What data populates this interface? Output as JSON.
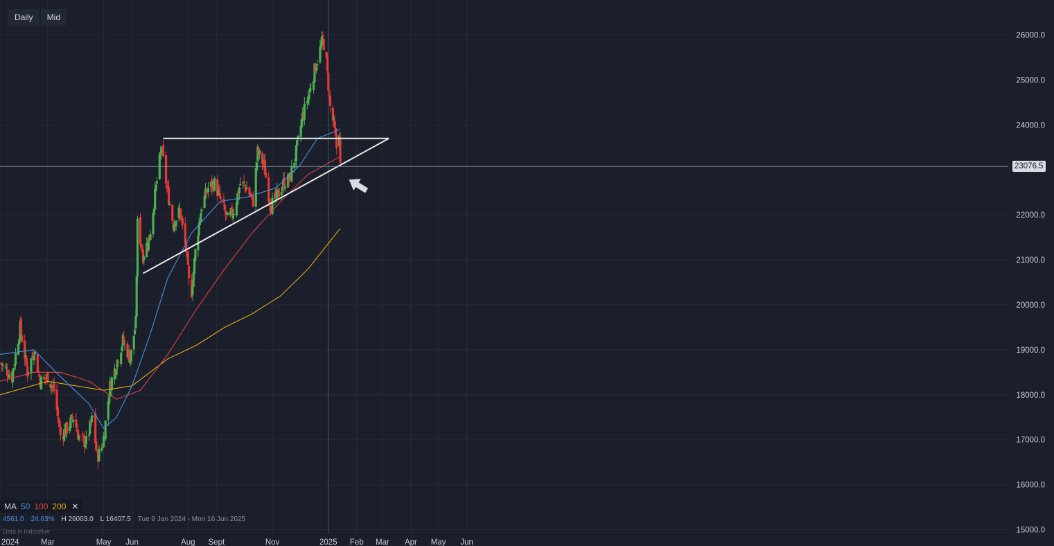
{
  "toolbar": {
    "interval_label": "Daily",
    "price_type_label": "Mid"
  },
  "ma_legend": {
    "label": "MA",
    "periods": [
      {
        "value": "50",
        "color": "#4a90e2"
      },
      {
        "value": "100",
        "color": "#e04040"
      },
      {
        "value": "200",
        "color": "#e6a817"
      }
    ],
    "close_glyph": "✕"
  },
  "stats": {
    "points": "4561.0",
    "percent": "24.63%",
    "high": "H 26003.0",
    "low": "L 16407.5",
    "range": "Tue 9 Jan 2024 - Mon 16 Jun 2025"
  },
  "disclaimer": "Data is indicative",
  "last_price_label": "23076.5",
  "colors": {
    "background": "#1b1f2b",
    "up": "#4caf50",
    "down": "#e53935",
    "ma50": "#4a90e2",
    "ma100": "#e04040",
    "ma200": "#e6a817",
    "trendline": "#e8e8e8",
    "grid": "#262b38"
  },
  "chart_data": {
    "type": "candlestick",
    "x_tick_labels": [
      "2024",
      "Mar",
      "May",
      "Jun",
      "Aug",
      "Sept",
      "Nov",
      "2025",
      "Feb",
      "Mar",
      "Apr",
      "May",
      "Jun"
    ],
    "y_tick_labels": [
      "26000.0",
      "25000.0",
      "24000.0",
      "22000.0",
      "21000.0",
      "20000.0",
      "19000.0",
      "18000.0",
      "17000.0",
      "16000.0",
      "15000.0"
    ],
    "y_ticks": [
      26000,
      25000,
      24000,
      22000,
      21000,
      20000,
      19000,
      18000,
      17000,
      16000,
      15000
    ],
    "y_range": [
      15000,
      26600
    ],
    "x_range": [
      "2024-01-09",
      "2025-06-16"
    ],
    "last_price": 23076.5,
    "current_date_marker": "2025-01-01",
    "grid": true,
    "close_series": [
      [
        "2024-01-10",
        18700
      ],
      [
        "2024-01-22",
        18400
      ],
      [
        "2024-01-31",
        19500
      ],
      [
        "2024-02-08",
        18500
      ],
      [
        "2024-02-15",
        19000
      ],
      [
        "2024-02-22",
        18300
      ],
      [
        "2024-03-01",
        18400
      ],
      [
        "2024-03-08",
        18100
      ],
      [
        "2024-03-15",
        17100
      ],
      [
        "2024-03-22",
        17250
      ],
      [
        "2024-03-29",
        17500
      ],
      [
        "2024-04-05",
        17000
      ],
      [
        "2024-04-12",
        16950
      ],
      [
        "2024-04-19",
        17500
      ],
      [
        "2024-04-24",
        16600
      ],
      [
        "2024-04-30",
        16900
      ],
      [
        "2024-05-08",
        18200
      ],
      [
        "2024-05-15",
        18700
      ],
      [
        "2024-05-22",
        19200
      ],
      [
        "2024-05-30",
        18800
      ],
      [
        "2024-06-05",
        19600
      ],
      [
        "2024-06-07",
        21800
      ],
      [
        "2024-06-13",
        21100
      ],
      [
        "2024-06-20",
        21500
      ],
      [
        "2024-06-27",
        22600
      ],
      [
        "2024-07-03",
        23500
      ],
      [
        "2024-07-09",
        22600
      ],
      [
        "2024-07-16",
        21800
      ],
      [
        "2024-07-23",
        22100
      ],
      [
        "2024-07-30",
        21200
      ],
      [
        "2024-08-02",
        20500
      ],
      [
        "2024-08-05",
        20300
      ],
      [
        "2024-08-10",
        21400
      ],
      [
        "2024-08-16",
        22200
      ],
      [
        "2024-08-23",
        22600
      ],
      [
        "2024-08-30",
        22700
      ],
      [
        "2024-09-06",
        22300
      ],
      [
        "2024-09-13",
        21900
      ],
      [
        "2024-09-20",
        22100
      ],
      [
        "2024-09-27",
        22700
      ],
      [
        "2024-10-04",
        22600
      ],
      [
        "2024-10-11",
        22300
      ],
      [
        "2024-10-16",
        23400
      ],
      [
        "2024-10-23",
        23100
      ],
      [
        "2024-10-30",
        22200
      ],
      [
        "2024-11-06",
        22400
      ],
      [
        "2024-11-13",
        22700
      ],
      [
        "2024-11-20",
        22800
      ],
      [
        "2024-11-27",
        23400
      ],
      [
        "2024-12-04",
        24200
      ],
      [
        "2024-12-11",
        24700
      ],
      [
        "2024-12-18",
        25300
      ],
      [
        "2024-12-26",
        25900
      ],
      [
        "2024-12-29",
        25600
      ],
      [
        "2025-01-03",
        24400
      ],
      [
        "2025-01-07",
        24000
      ],
      [
        "2025-01-10",
        23500
      ],
      [
        "2025-01-13",
        23900
      ],
      [
        "2025-01-14",
        23076.5
      ]
    ],
    "ma50": [
      [
        "2024-01-09",
        18900
      ],
      [
        "2024-02-15",
        19000
      ],
      [
        "2024-03-15",
        18400
      ],
      [
        "2024-04-15",
        17800
      ],
      [
        "2024-05-01",
        17250
      ],
      [
        "2024-05-15",
        17500
      ],
      [
        "2024-06-01",
        18200
      ],
      [
        "2024-06-20",
        19300
      ],
      [
        "2024-07-10",
        20600
      ],
      [
        "2024-08-05",
        21600
      ],
      [
        "2024-09-05",
        22300
      ],
      [
        "2024-10-05",
        22400
      ],
      [
        "2024-11-05",
        22600
      ],
      [
        "2024-12-01",
        23100
      ],
      [
        "2024-12-20",
        23700
      ],
      [
        "2025-01-14",
        23900
      ]
    ],
    "ma100": [
      [
        "2024-01-09",
        18300
      ],
      [
        "2024-02-15",
        18500
      ],
      [
        "2024-03-15",
        18500
      ],
      [
        "2024-04-15",
        18300
      ],
      [
        "2024-05-15",
        17900
      ],
      [
        "2024-06-10",
        18100
      ],
      [
        "2024-07-10",
        18900
      ],
      [
        "2024-08-10",
        19900
      ],
      [
        "2024-09-10",
        20800
      ],
      [
        "2024-10-10",
        21600
      ],
      [
        "2024-11-10",
        22300
      ],
      [
        "2024-12-10",
        22900
      ],
      [
        "2025-01-14",
        23300
      ]
    ],
    "ma200": [
      [
        "2024-01-09",
        18000
      ],
      [
        "2024-03-01",
        18300
      ],
      [
        "2024-05-01",
        18100
      ],
      [
        "2024-06-01",
        18200
      ],
      [
        "2024-07-10",
        18800
      ],
      [
        "2024-08-10",
        19100
      ],
      [
        "2024-09-10",
        19500
      ],
      [
        "2024-10-10",
        19800
      ],
      [
        "2024-11-10",
        20200
      ],
      [
        "2024-12-10",
        20800
      ],
      [
        "2025-01-14",
        21700
      ]
    ],
    "trendlines": [
      {
        "name": "resistance",
        "start": [
          "2024-07-05",
          23700
        ],
        "end": [
          "2025-03-08",
          23700
        ]
      },
      {
        "name": "support",
        "start": [
          "2024-06-13",
          20700
        ],
        "end": [
          "2025-03-08",
          23700
        ]
      }
    ],
    "annotation": {
      "type": "arrow",
      "points_to": [
        "2025-01-19",
        23000
      ]
    }
  }
}
